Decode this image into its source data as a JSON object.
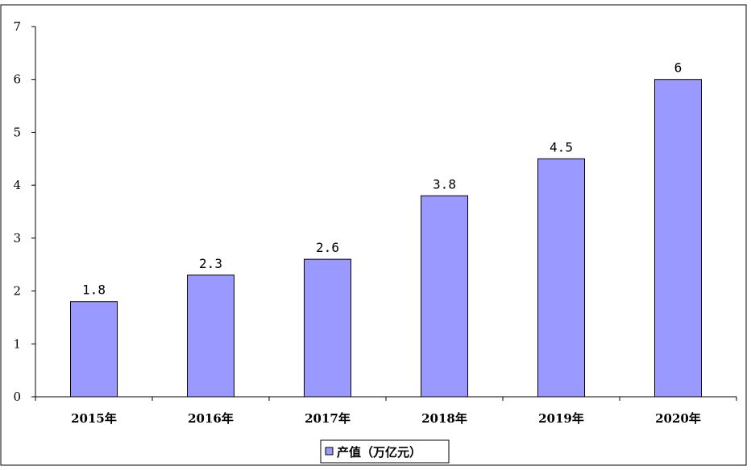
{
  "chart_data": {
    "type": "bar",
    "categories": [
      "2015年",
      "2016年",
      "2017年",
      "2018年",
      "2019年",
      "2020年"
    ],
    "series": [
      {
        "name": "产值（万亿元）",
        "values": [
          1.8,
          2.3,
          2.6,
          3.8,
          4.5,
          6
        ],
        "color": "#9999ff"
      }
    ],
    "data_labels": [
      "1.8",
      "2.3",
      "2.6",
      "3.8",
      "4.5",
      "6"
    ],
    "yticks": [
      "0",
      "1",
      "2",
      "3",
      "4",
      "5",
      "6",
      "7"
    ],
    "ylim": [
      0,
      7
    ],
    "grid": false,
    "legend_position": "bottom",
    "title": "",
    "xlabel": "",
    "ylabel": ""
  }
}
